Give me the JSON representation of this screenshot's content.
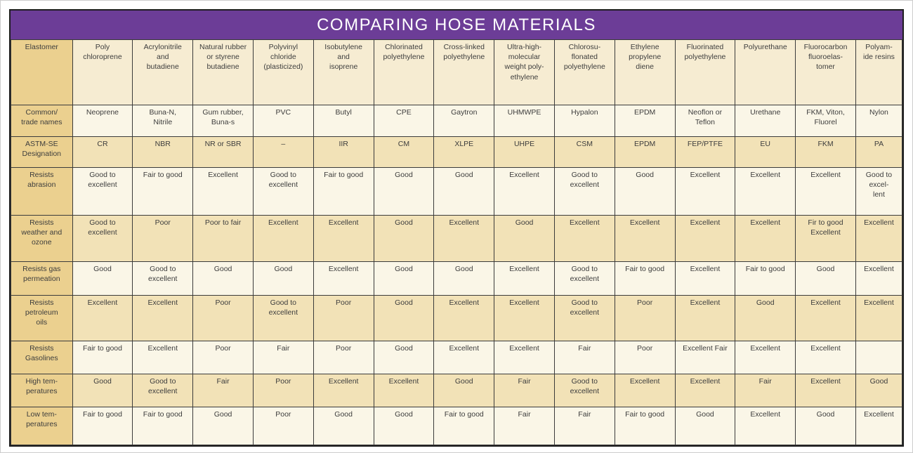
{
  "title": "COMPARING HOSE MATERIALS",
  "colors": {
    "title_bg": "#6C3D97",
    "title_text": "#FFFFFF",
    "label_column_bg": "#EBD08F",
    "header_row_bg": "#F6ECD2",
    "row_light_bg": "#FAF6E7",
    "row_dark_bg": "#F2E2B7",
    "grid_border": "#3B3B3B",
    "text": "#3D3D3D"
  },
  "chart_data": {
    "type": "table",
    "title": "COMPARING HOSE MATERIALS",
    "corner_label": "Elastomer",
    "column_headers": [
      "Poly\nchloroprene",
      "Acrylonitrile\nand\nbutadiene",
      "Natural rubber\nor styrene\nbutadiene",
      "Polyvinyl\nchloride\n(plasticized)",
      "Isobutylene\nand\nisoprene",
      "Chlorinated\npolyethylene",
      "Cross-linked\npolyethylene",
      "Ultra-high-\nmolecular\nweight poly-\nethylene",
      "Chlorosu-\nflonated\npolyethylene",
      "Ethylene\npropylene\ndiene",
      "Fluorinated\npolyethylene",
      "Polyurethane",
      "Fluorocarbon\nfluoroelas-\ntomer",
      "Polyam-\nide resins"
    ],
    "rows": [
      {
        "label": "Common/\ntrade names",
        "cells": [
          "Neoprene",
          "Buna-N,\nNitrile",
          "Gum rubber,\nBuna-s",
          "PVC",
          "Butyl",
          "CPE",
          "Gaytron",
          "UHMWPE",
          "Hypalon",
          "EPDM",
          "Neoflon or\nTeflon",
          "Urethane",
          "FKM, Viton,\nFluorel",
          "Nylon"
        ]
      },
      {
        "label": "ASTM-SE\nDesignation",
        "cells": [
          "CR",
          "NBR",
          "NR or SBR",
          "–",
          "IIR",
          "CM",
          "XLPE",
          "UHPE",
          "CSM",
          "EPDM",
          "FEP/PTFE",
          "EU",
          "FKM",
          "PA"
        ]
      },
      {
        "label": "Resists\nabrasion",
        "cells": [
          "Good to\nexcellent",
          "Fair to good",
          "Excellent",
          "Good to\nexcellent",
          "Fair to good",
          "Good",
          "Good",
          "Excellent",
          "Good to\nexcellent",
          "Good",
          "Excellent",
          "Excellent",
          "Excellent",
          "Good to\nexcel-\nlent"
        ]
      },
      {
        "label": "Resists\nweather and\nozone",
        "cells": [
          "Good to\nexcellent",
          "Poor",
          "Poor to fair",
          "Excellent",
          "Excellent",
          "Good",
          "Excellent",
          "Good",
          "Excellent",
          "Excellent",
          "Excellent",
          "Excellent",
          "Fir to good\nExcellent",
          "Excellent"
        ]
      },
      {
        "label": "Resists gas\npermeation",
        "cells": [
          "Good",
          "Good to\nexcellent",
          "Good",
          "Good",
          "Excellent",
          "Good",
          "Good",
          "Excellent",
          "Good to\nexcellent",
          "Fair to good",
          "Excellent",
          "Fair to good",
          "Good",
          "Excellent"
        ]
      },
      {
        "label": "Resists\npetroleum\noils",
        "cells": [
          "Excellent",
          "Excellent",
          "Poor",
          "Good to\nexcellent",
          "Poor",
          "Good",
          "Excellent",
          "Excellent",
          "Good to\nexcellent",
          "Poor",
          "Excellent",
          "Good",
          "Excellent",
          "Excellent"
        ]
      },
      {
        "label": "Resists\nGasolines",
        "cells": [
          "Fair to good",
          "Excellent",
          "Poor",
          "Fair",
          "Poor",
          "Good",
          "Excellent",
          "Excellent",
          "Fair",
          "Poor",
          "Excellent Fair",
          "Excellent",
          "Excellent",
          ""
        ]
      },
      {
        "label": "High tem-\nperatures",
        "cells": [
          "Good",
          "Good to\nexcellent",
          "Fair",
          "Poor",
          "Excellent",
          "Excellent",
          "Good",
          "Fair",
          "Good to\nexcellent",
          "Excellent",
          "Excellent",
          "Fair",
          "Excellent",
          "Good"
        ]
      },
      {
        "label": "Low tem-\nperatures",
        "cells": [
          "Fair to good",
          "Fair to good",
          "Good",
          "Poor",
          "Good",
          "Good",
          "Fair to good",
          "Fair",
          "Fair",
          "Fair to good",
          "Good",
          "Excellent",
          "Good",
          "Excellent"
        ]
      }
    ]
  }
}
